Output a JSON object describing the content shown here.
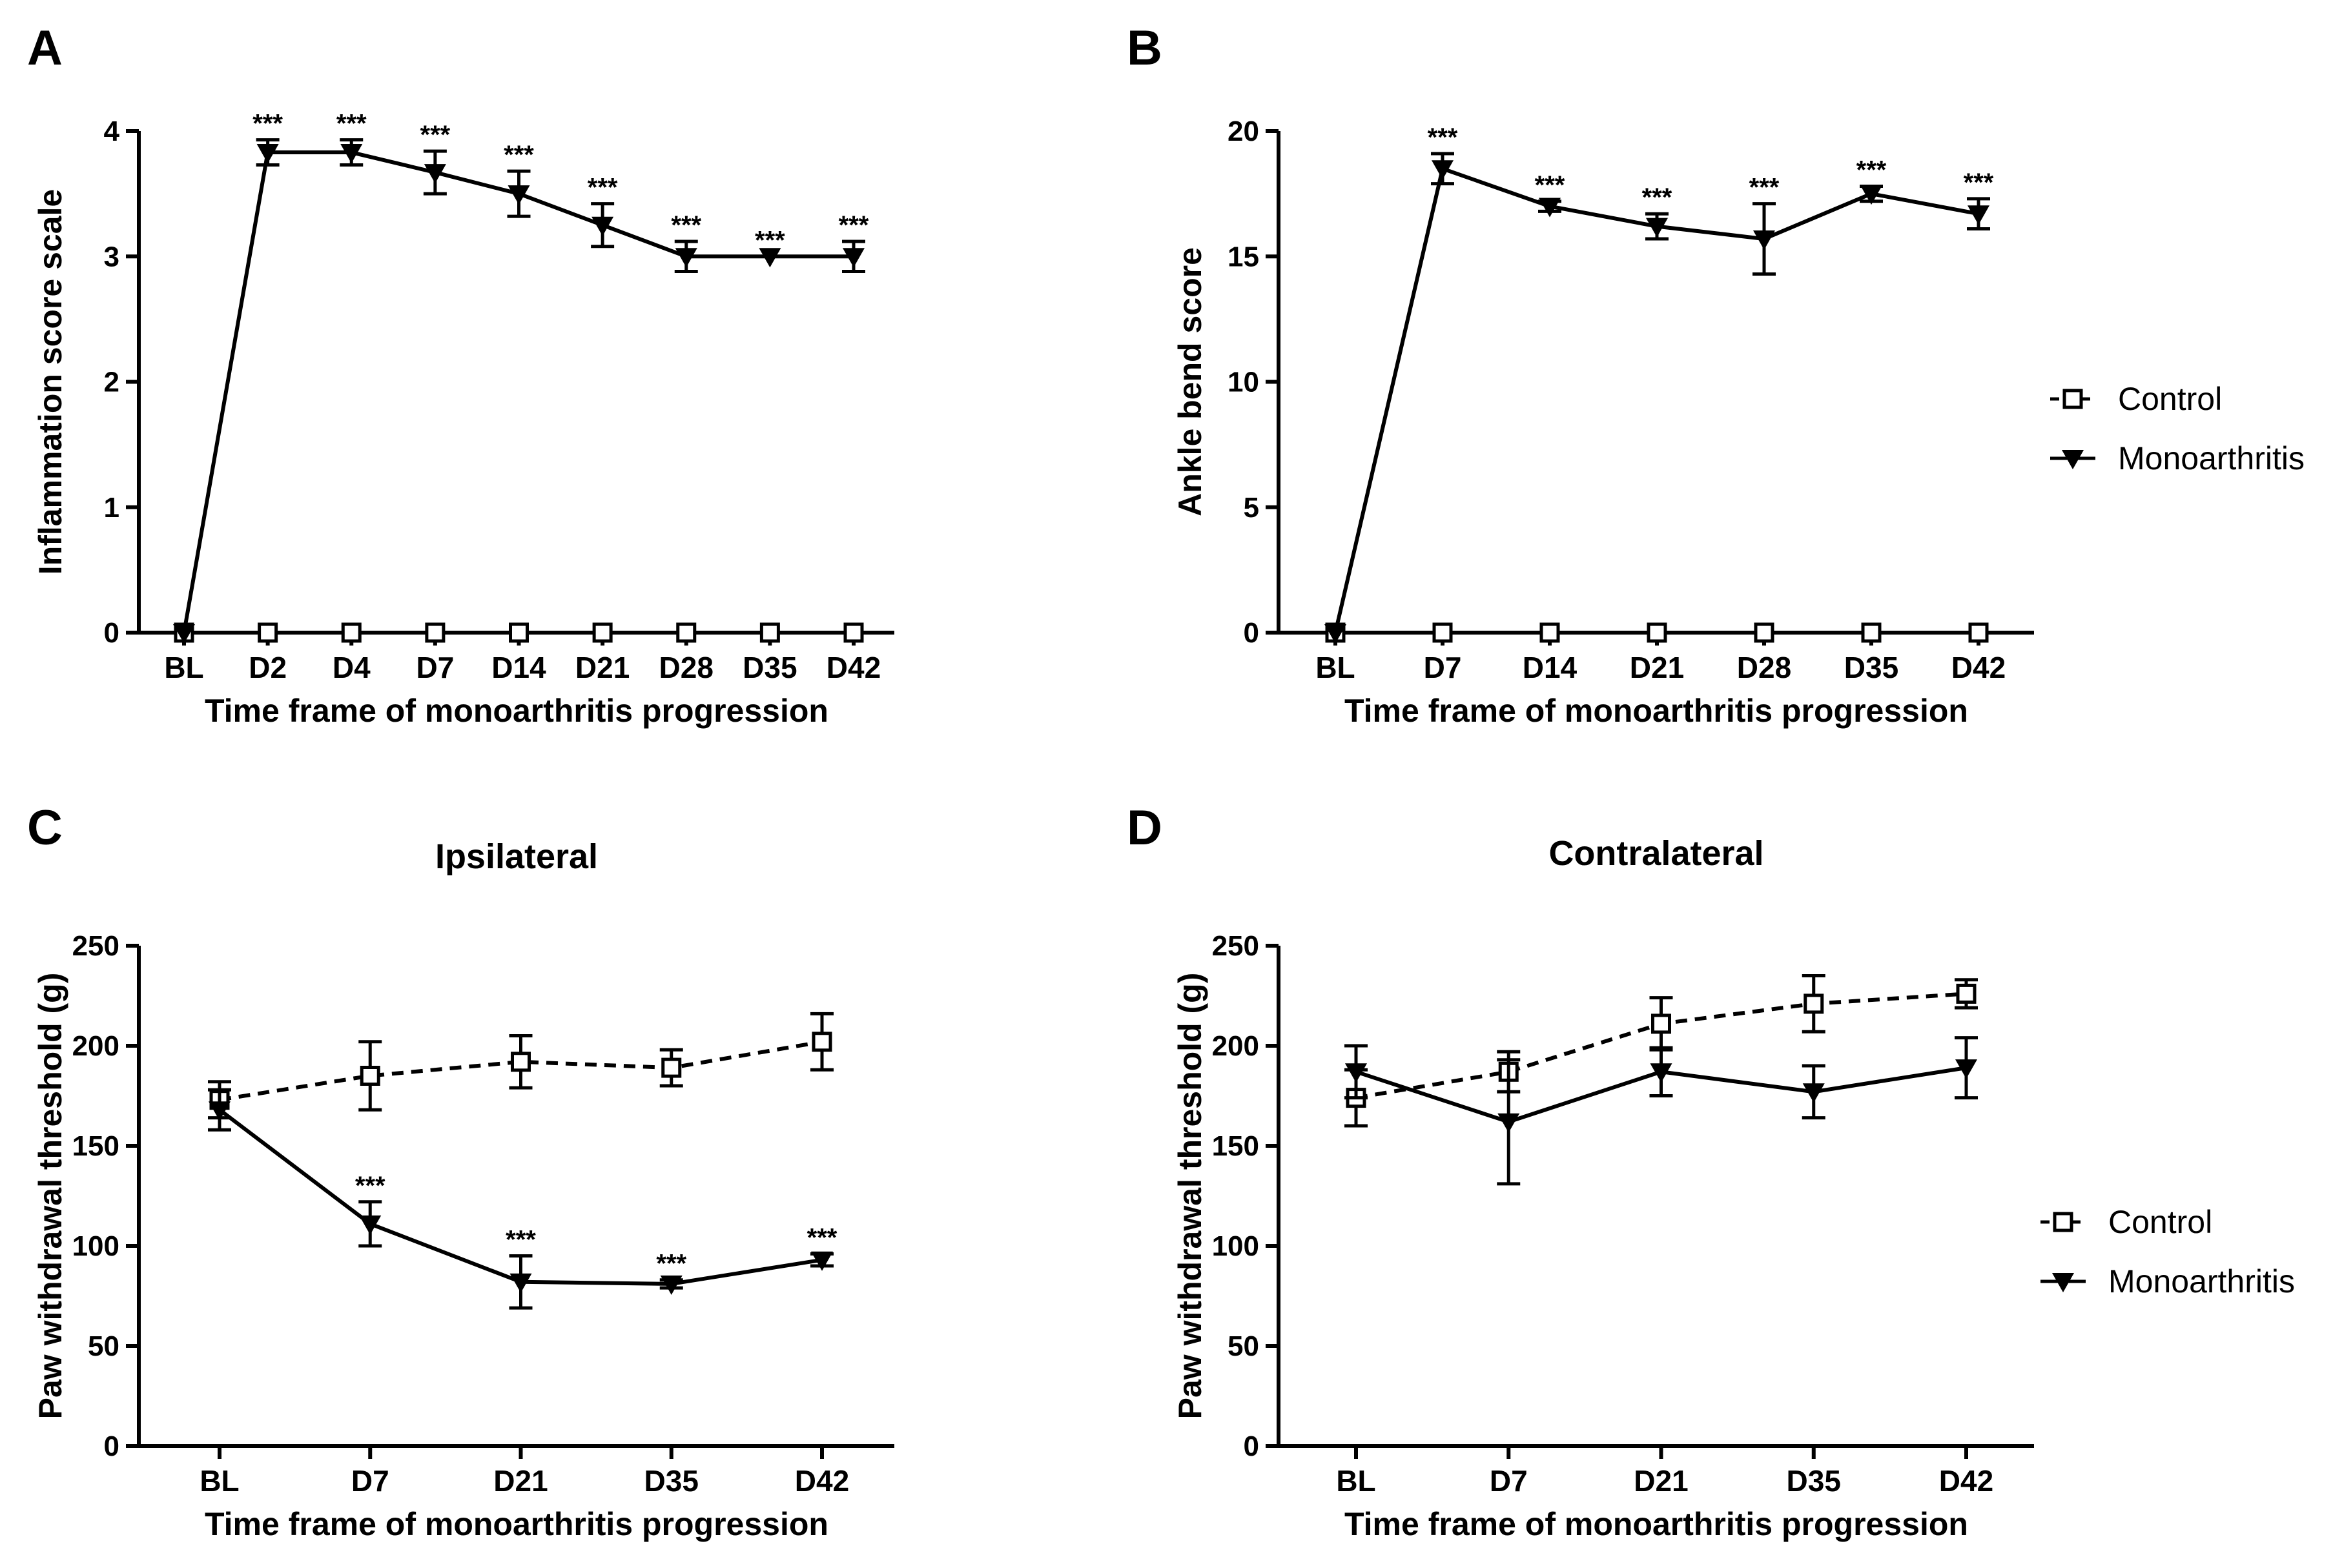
{
  "chart_data": [
    {
      "panel": "A",
      "type": "line",
      "title": "",
      "xlabel": "Time frame of monoarthritis progression",
      "ylabel": "Inflammation score scale",
      "categories": [
        "BL",
        "D2",
        "D4",
        "D7",
        "D14",
        "D21",
        "D28",
        "D35",
        "D42"
      ],
      "ylim": [
        0,
        4
      ],
      "yticks": [
        "0",
        "1",
        "2",
        "3",
        "4"
      ],
      "series": [
        {
          "name": "Control",
          "marker": "open-square",
          "line": "dashed",
          "values": [
            0,
            0,
            0,
            0,
            0,
            0,
            0,
            0,
            0
          ],
          "errors": [
            0,
            0,
            0,
            0,
            0,
            0,
            0,
            0,
            0
          ]
        },
        {
          "name": "Monoarthritis",
          "marker": "filled-triangle-down",
          "line": "solid",
          "values": [
            0,
            3.83,
            3.83,
            3.67,
            3.5,
            3.25,
            3.0,
            3.0,
            3.0
          ],
          "errors": [
            0,
            0.1,
            0.1,
            0.17,
            0.18,
            0.17,
            0.12,
            0,
            0.12
          ]
        }
      ],
      "annotations": [
        "",
        "***",
        "***",
        "***",
        "***",
        "***",
        "***",
        "***",
        "***"
      ],
      "legend": "none"
    },
    {
      "panel": "B",
      "type": "line",
      "title": "",
      "xlabel": "Time frame of monoarthritis progression",
      "ylabel": "Ankle bend score",
      "categories": [
        "BL",
        "D7",
        "D14",
        "D21",
        "D28",
        "D35",
        "D42"
      ],
      "ylim": [
        0,
        20
      ],
      "yticks": [
        "0",
        "5",
        "10",
        "15",
        "20"
      ],
      "series": [
        {
          "name": "Control",
          "marker": "open-square",
          "line": "dashed",
          "values": [
            0,
            0,
            0,
            0,
            0,
            0,
            0
          ],
          "errors": [
            0,
            0,
            0,
            0,
            0,
            0,
            0
          ]
        },
        {
          "name": "Monoarthritis",
          "marker": "filled-triangle-down",
          "line": "solid",
          "values": [
            0,
            18.5,
            17.0,
            16.2,
            15.7,
            17.5,
            16.7
          ],
          "errors": [
            0,
            0.6,
            0.2,
            0.5,
            1.4,
            0.3,
            0.6
          ]
        }
      ],
      "annotations": [
        "",
        "***",
        "***",
        "***",
        "***",
        "***",
        "***"
      ],
      "legend": "right"
    },
    {
      "panel": "C",
      "type": "line",
      "title": "Ipsilateral",
      "xlabel": "Time frame of monoarthritis progression",
      "ylabel": "Paw withdrawal threshold (g)",
      "categories": [
        "BL",
        "D7",
        "D21",
        "D35",
        "D42"
      ],
      "ylim": [
        0,
        250
      ],
      "yticks": [
        "0",
        "50",
        "100",
        "150",
        "200",
        "250"
      ],
      "series": [
        {
          "name": "Control",
          "marker": "open-square",
          "line": "dashed",
          "values": [
            173,
            185,
            192,
            189,
            202
          ],
          "errors": [
            9,
            17,
            13,
            9,
            14
          ]
        },
        {
          "name": "Monoarthritis",
          "marker": "filled-triangle-down",
          "line": "solid",
          "values": [
            168,
            111,
            82,
            81,
            93
          ],
          "errors": [
            10,
            11,
            13,
            2,
            3
          ]
        }
      ],
      "annotations": [
        "",
        "***",
        "***",
        "***",
        "***"
      ],
      "legend": "none"
    },
    {
      "panel": "D",
      "type": "line",
      "title": "Contralateral",
      "xlabel": "Time frame of monoarthritis progression",
      "ylabel": "Paw withdrawal threshold (g)",
      "categories": [
        "BL",
        "D7",
        "D21",
        "D35",
        "D42"
      ],
      "ylim": [
        0,
        250
      ],
      "yticks": [
        "0",
        "50",
        "100",
        "150",
        "200",
        "250"
      ],
      "series": [
        {
          "name": "Control",
          "marker": "open-square",
          "line": "dashed",
          "values": [
            174,
            187,
            211,
            221,
            226
          ],
          "errors": [
            14,
            10,
            13,
            14,
            7
          ]
        },
        {
          "name": "Monoarthritis",
          "marker": "filled-triangle-down",
          "line": "solid",
          "values": [
            187,
            162,
            187,
            177,
            189
          ],
          "errors": [
            13,
            31,
            12,
            13,
            15
          ]
        }
      ],
      "annotations": [
        "",
        "",
        "",
        "",
        ""
      ],
      "legend": "right"
    }
  ],
  "legend": {
    "control_label": "Control",
    "monoarthritis_label": "Monoarthritis"
  }
}
